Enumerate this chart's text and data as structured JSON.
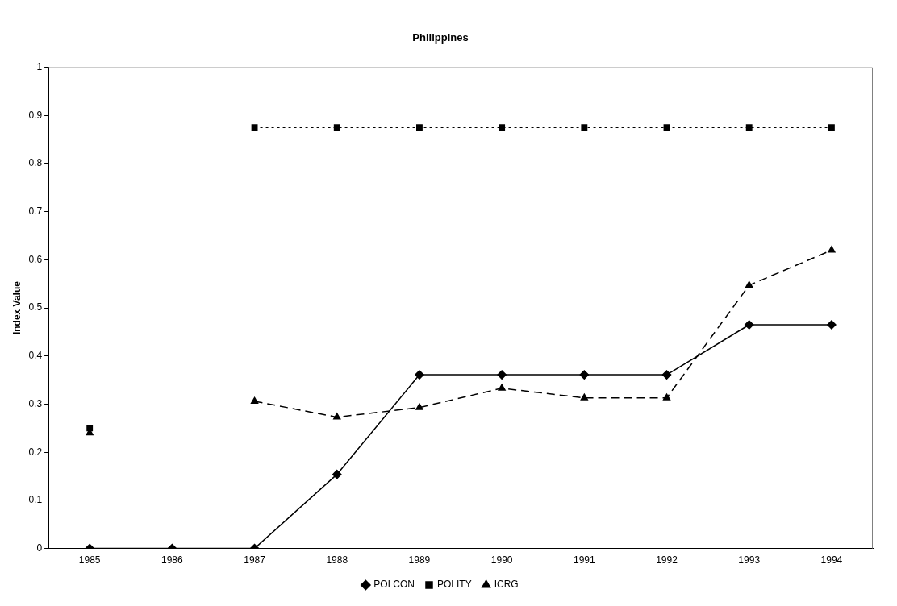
{
  "chart_data": {
    "type": "line",
    "title": "Philippines",
    "ylabel": "Index Value",
    "categories": [
      "1985",
      "1986",
      "1987",
      "1988",
      "1989",
      "1990",
      "1991",
      "1992",
      "1993",
      "1994"
    ],
    "ylim": [
      0,
      1
    ],
    "yticks": [
      0,
      0.1,
      0.2,
      0.3,
      0.4,
      0.5,
      0.6,
      0.7,
      0.8,
      0.9,
      1
    ],
    "grid": false,
    "legend": "bottom",
    "series": [
      {
        "name": "POLCON",
        "color": "#000000",
        "marker": "diamond",
        "line_style": "solid",
        "values": [
          0,
          0,
          0,
          0.154,
          0.361,
          0.361,
          0.361,
          0.361,
          0.465,
          0.465
        ]
      },
      {
        "name": "POLITY",
        "color": "#000000",
        "marker": "square",
        "line_style": "dotted",
        "values": [
          0.25,
          null,
          0.875,
          0.875,
          0.875,
          0.875,
          0.875,
          0.875,
          0.875,
          0.875
        ]
      },
      {
        "name": "ICRG",
        "color": "#000000",
        "marker": "triangle",
        "line_style": "dashed",
        "values": [
          0.24,
          null,
          0.306,
          0.273,
          0.293,
          0.333,
          0.313,
          0.313,
          0.547,
          0.62
        ]
      }
    ]
  }
}
